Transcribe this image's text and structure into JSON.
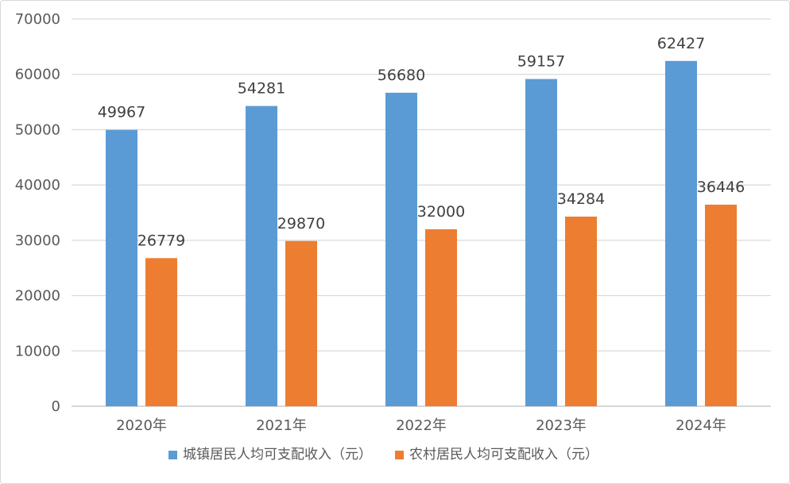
{
  "chart_data": {
    "type": "bar",
    "title": "",
    "xlabel": "",
    "ylabel": "",
    "categories": [
      "2020年",
      "2021年",
      "2022年",
      "2023年",
      "2024年"
    ],
    "series": [
      {
        "name": "城镇居民人均可支配收入（元）",
        "color": "#5b9bd5",
        "values": [
          49967,
          54281,
          56680,
          59157,
          62427
        ]
      },
      {
        "name": "农村居民人均可支配收入（元）",
        "color": "#ed7d31",
        "values": [
          26779,
          29870,
          32000,
          34284,
          36446
        ]
      }
    ],
    "ylim": [
      0,
      70000
    ],
    "yticks": [
      0,
      10000,
      20000,
      30000,
      40000,
      50000,
      60000,
      70000
    ],
    "grid": true,
    "legend": "bottom",
    "data_labels": true
  }
}
